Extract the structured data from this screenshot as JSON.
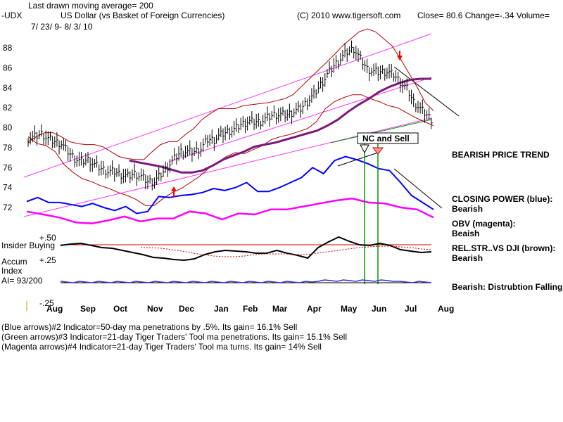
{
  "header": {
    "line1": "Last drawn moving average= 200",
    "symbol": "-UDX",
    "name": "US Dollar (vs Basket of Foreign Currencies)",
    "copyright": "(C) 2010 www.tigersoft.com",
    "quote": "Close=  80.6  Change=-.34 Volume=",
    "dates": "7/ 23/ 9-  8/ 3/ 10"
  },
  "notes": [
    "BEARISH PRICE TREND",
    "CLOSING POWER (blue):",
    "Bearish",
    "OBV (magenta):",
    "Beaish",
    "REL.STR..VS DJI (brown):",
    "Bearish",
    "Bearish: Distrubtion Falling."
  ],
  "callout": "NC and Sell",
  "lower_labels": {
    "insider": "Insider Buying",
    "accum": "Accum",
    "index": "Index",
    "ai": "AI= 93/200",
    "p50": "+.50",
    "p25": "+.25",
    "m25": "-.25"
  },
  "footer": [
    "(Blue arrows)#2 Indicator=50-day ma penetrations by .5%. Its gain= 16.1% Sell",
    "(Green arrows)#3 Indicator=21-day Tiger Traders' Tool ma penetrations. Its gain= 15.1% Sell",
    "(Magenta arrows)#4 Indicator=21-day Tiger Traders' Tool ma turns. Its gain= 14% Sell"
  ],
  "colors": {
    "price": "#000000",
    "band": "#b00000",
    "ma200": "#7a1a7a",
    "ma50": "#cc0000",
    "channel": "#ff33ff",
    "closing_power": "#0000ff",
    "obv": "#ff00ff",
    "rel_str": "#000000",
    "accum": "#3333cc",
    "green": "#009900",
    "arrow_red": "#ff0000"
  },
  "chart_data": {
    "type": "line",
    "title": "US Dollar (vs Basket of Foreign Currencies)",
    "xlabel": "",
    "ylabel": "",
    "x_ticks": [
      "Aug",
      "Sep",
      "Oct",
      "Nov",
      "Dec",
      "Jan",
      "Feb",
      "Mar",
      "Apr",
      "May",
      "Jun",
      "Jul",
      "Aug"
    ],
    "y_ticks": [
      72,
      74,
      76,
      78,
      80,
      82,
      84,
      86,
      88
    ],
    "ylim": [
      70.6,
      90.2
    ],
    "series": [
      {
        "name": "Price",
        "values": [
          78.9,
          79.1,
          79.4,
          78.9,
          78.6,
          78.4,
          77.6,
          76.9,
          76.6,
          76.8,
          76.3,
          75.9,
          75.6,
          75.6,
          75.3,
          75.1,
          75.4,
          75.1,
          74.6,
          74.6,
          75.3,
          76.1,
          76.9,
          77.6,
          77.6,
          77.6,
          77.9,
          78.8,
          78.8,
          79.3,
          79.6,
          79.8,
          80.3,
          80.6,
          80.6,
          80.6,
          81.0,
          81.3,
          81.3,
          81.3,
          81.6,
          81.9,
          82.6,
          83.3,
          84.3,
          85.3,
          86.2,
          86.9,
          87.6,
          87.9,
          86.9,
          85.9,
          85.6,
          85.6,
          85.6,
          85.3,
          84.6,
          83.9,
          82.6,
          81.9,
          81.3,
          80.6
        ]
      },
      {
        "name": "Upper band",
        "values": [
          78.6,
          79.1,
          79.5,
          79.5,
          79.1,
          78.6,
          78.4,
          78.3,
          78.3,
          78.1,
          77.6,
          77.1,
          76.9,
          76.8,
          76.8,
          77.6,
          78.3,
          78.6,
          78.6,
          79.3,
          79.9,
          80.8,
          81.4,
          81.9,
          81.9,
          81.9,
          82.2,
          82.3,
          82.4,
          82.5,
          82.7,
          82.9,
          83.3,
          84.1,
          84.9,
          85.7,
          86.5,
          87.3,
          88.2,
          88.9,
          89.6,
          89.9,
          89.6,
          88.9,
          88.2,
          86.9,
          85.5,
          84.1,
          82.5,
          81.7
        ]
      },
      {
        "name": "Lower band",
        "values": [
          79.1,
          78.4,
          78.2,
          77.6,
          76.3,
          75.5,
          74.9,
          74.6,
          74.2,
          73.9,
          73.5,
          73.2,
          72.8,
          72.2,
          72.2,
          72.9,
          73.5,
          73.9,
          74.5,
          75.1,
          75.9,
          76.5,
          77.1,
          77.5,
          77.4,
          77.8,
          78.2,
          78.8,
          79.1,
          79.3,
          79.6,
          79.9,
          80.6,
          81.9,
          82.6,
          83.0,
          83.3,
          83.3,
          82.9,
          82.6,
          82.2,
          82.0,
          81.5,
          81.0,
          80.6,
          80.2
        ]
      },
      {
        "name": "MA 200",
        "values": [
          76.7,
          76.5,
          76.3,
          76.1,
          75.8,
          75.5,
          75.5,
          75.7,
          76.2,
          76.8,
          77.2,
          77.6,
          78.1,
          78.3,
          78.5,
          78.8,
          79.1,
          79.4,
          79.7,
          80.2,
          80.8,
          81.6,
          82.3,
          82.9,
          83.6,
          84.1,
          84.5,
          84.8,
          84.9,
          84.9
        ]
      },
      {
        "name": "Closing Power (blue)",
        "values": [
          72.6,
          73.0,
          72.5,
          72.5,
          72.3,
          72.1,
          72.4,
          72.0,
          71.7,
          72.1,
          71.4,
          71.6,
          73.1,
          73.0,
          73.2,
          73.3,
          73.5,
          73.9,
          73.7,
          74.0,
          74.5,
          73.6,
          73.6,
          74.0,
          74.5,
          75.0,
          76.0,
          75.4,
          76.7,
          77.1,
          76.8,
          76.4,
          75.9,
          75.7,
          74.5,
          73.2,
          72.5,
          71.8
        ]
      },
      {
        "name": "OBV (magenta)",
        "values": [
          71.6,
          71.3,
          71.0,
          70.5,
          70.4,
          70.7,
          71.1,
          70.6,
          70.9,
          70.9,
          71.6,
          71.4,
          70.8,
          71.4,
          71.3,
          71.8,
          71.8,
          72.1,
          72.4,
          72.7,
          72.9,
          72.5,
          72.4,
          72.0,
          71.8,
          71.0
        ]
      }
    ]
  }
}
